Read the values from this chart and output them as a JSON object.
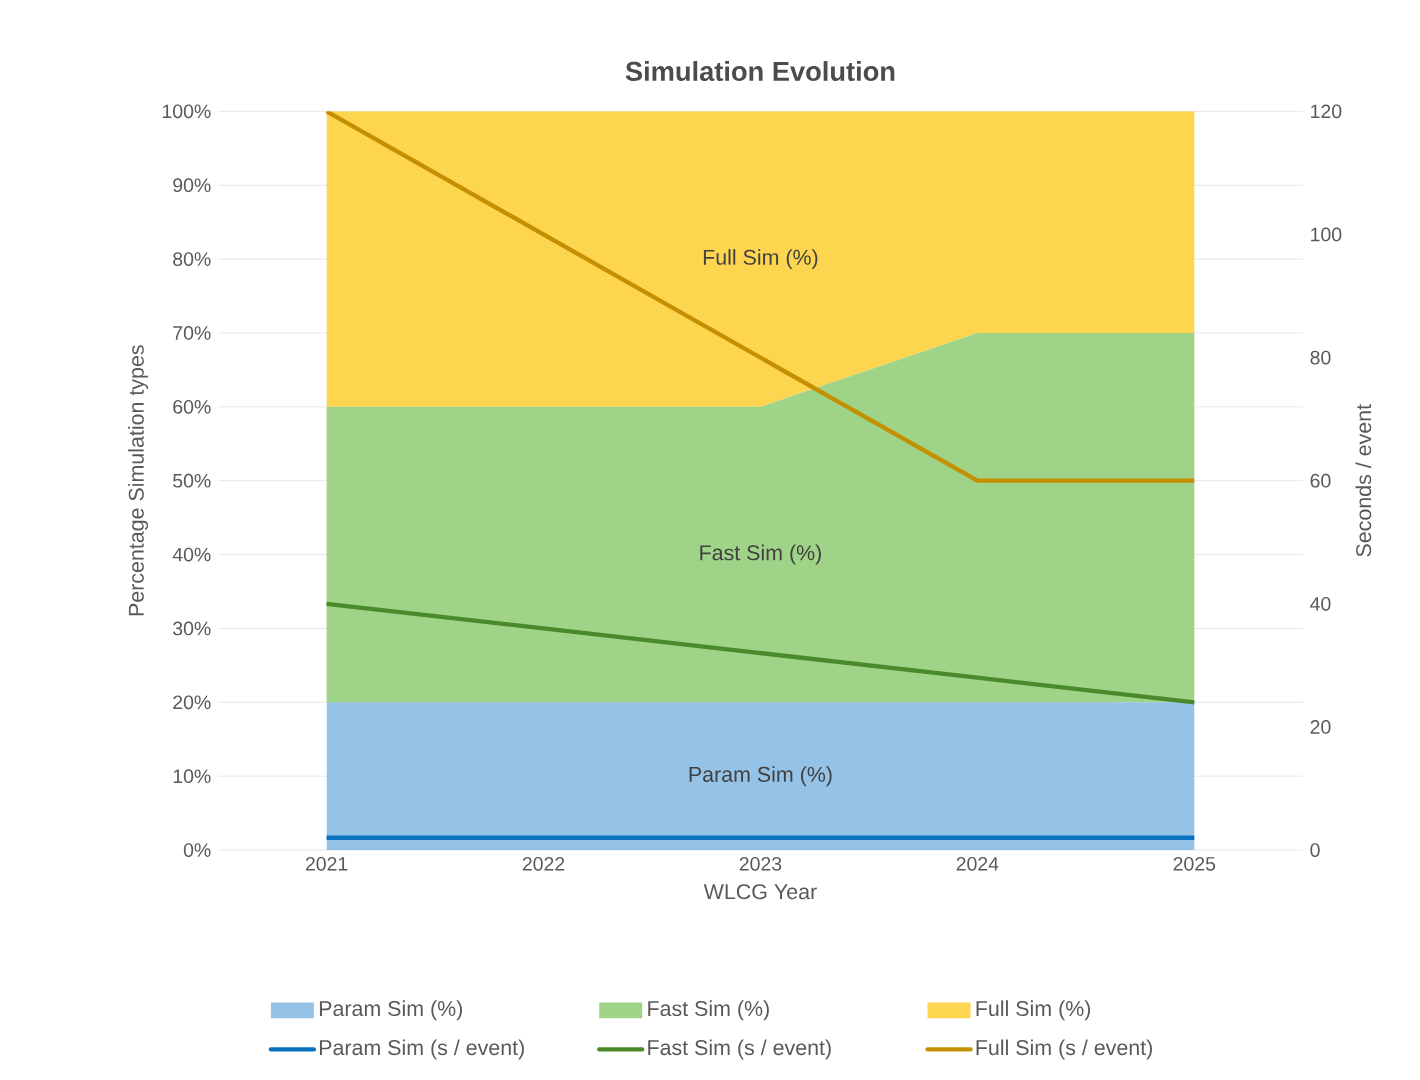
{
  "chart_data": {
    "type": "area",
    "title": "Simulation Evolution",
    "xlabel": "WLCG Year",
    "ylabel": "Percentage Simulation types",
    "y2label": "Seconds / event",
    "categories": [
      "2021",
      "2022",
      "2023",
      "2024",
      "2025"
    ],
    "stacked": true,
    "grid": "y",
    "legend": "bottom",
    "ylim": [
      0,
      100
    ],
    "yticks": [
      {
        "value": 0,
        "label": "0%"
      },
      {
        "value": 10,
        "label": "10%"
      },
      {
        "value": 20,
        "label": "20%"
      },
      {
        "value": 30,
        "label": "30%"
      },
      {
        "value": 40,
        "label": "40%"
      },
      {
        "value": 50,
        "label": "50%"
      },
      {
        "value": 60,
        "label": "60%"
      },
      {
        "value": 70,
        "label": "70%"
      },
      {
        "value": 80,
        "label": "80%"
      },
      {
        "value": 90,
        "label": "90%"
      },
      {
        "value": 100,
        "label": "100%"
      }
    ],
    "y2lim": [
      0,
      120
    ],
    "y2ticks": [
      0,
      20,
      40,
      60,
      80,
      100,
      120
    ],
    "series": [
      {
        "name": "Param Sim (%)",
        "color": "#95c3e8",
        "values": [
          20,
          20,
          20,
          20,
          20
        ]
      },
      {
        "name": "Fast Sim (%)",
        "color": "#9fd387",
        "values": [
          40,
          40,
          40,
          50,
          50
        ]
      },
      {
        "name": "Full Sim (%)",
        "color": "#fdd54e",
        "values": [
          40,
          40,
          40,
          30,
          30
        ]
      },
      {
        "name": "Param Sim (s / event)",
        "type": "line",
        "axis": "y2",
        "color": "#0a70c0",
        "values": [
          2,
          2,
          2,
          2,
          2
        ]
      },
      {
        "name": "Fast Sim (s / event)",
        "type": "line",
        "axis": "y2",
        "color": "#4a8a2a",
        "values": [
          40,
          36,
          32,
          28,
          24
        ]
      },
      {
        "name": "Full Sim (s / event)",
        "type": "line",
        "axis": "y2",
        "color": "#c48f00",
        "values": [
          120,
          100,
          80,
          60,
          60
        ]
      }
    ],
    "annotations": [
      "Full Sim (%)",
      "Fast Sim (%)",
      "Param Sim (%)"
    ]
  }
}
